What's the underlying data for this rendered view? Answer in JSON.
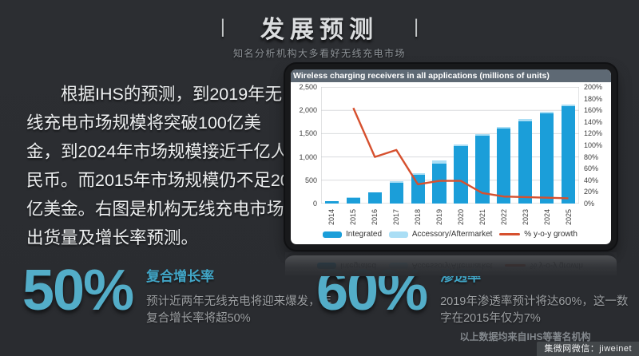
{
  "slide": {
    "background": "#2b2d31",
    "accent_teal": "#53adc8"
  },
  "header": {
    "decor_left": "|",
    "decor_right": "|",
    "title": "发展预测",
    "subtitle": "知名分析机构大多看好无线充电市场"
  },
  "intro": {
    "paragraph": "根据IHS的预测，到2019年无线充电市场规模将突破100亿美金，到2024年市场规模接近千亿人民币。而2015年市场规模仍不足20亿美金。右图是机构无线充电市场出货量及增长率预测。"
  },
  "chart_data": {
    "type": "bar",
    "title": "Wireless charging receivers in all applications (millions of units)",
    "categories": [
      "2014",
      "2015",
      "2016",
      "2017",
      "2018",
      "2019",
      "2020",
      "2021",
      "2022",
      "2023",
      "2024",
      "2025"
    ],
    "series": [
      {
        "name": "Integrated",
        "type": "bar",
        "color": "#1b9ed9",
        "values": [
          48,
          128,
          238,
          452,
          612,
          858,
          1228,
          1455,
          1608,
          1772,
          1932,
          2092
        ]
      },
      {
        "name": "Accessory/Aftermarket",
        "type": "bar",
        "color": "#aadef5",
        "values": [
          4,
          7,
          10,
          28,
          42,
          66,
          48,
          42,
          38,
          42,
          34,
          26
        ]
      },
      {
        "name": "% y-o-y growth",
        "type": "line",
        "color": "#d6502e",
        "axis": "right",
        "values": [
          null,
          164,
          80,
          92,
          33,
          39,
          39,
          18,
          12,
          11,
          10,
          9
        ]
      }
    ],
    "stacked": true,
    "left_axis": {
      "max": 2500,
      "ticks": [
        "0",
        "500",
        "1,000",
        "1,500",
        "2,000",
        "2,500"
      ]
    },
    "right_axis": {
      "max": 200,
      "ticks": [
        "0%",
        "20%",
        "40%",
        "60%",
        "80%",
        "100%",
        "120%",
        "140%",
        "160%",
        "180%",
        "200%"
      ]
    },
    "grid": "horizontal gridlines every 500 units",
    "legend_position": "bottom",
    "plot_background": "#ffffff",
    "header_bar_color": "#5e6974"
  },
  "stats": [
    {
      "value": "50%",
      "label": "复合增长率",
      "desc": "预计近两年无线充电将迎来爆发，年复合增长率将超50%"
    },
    {
      "value": "60%",
      "label": "渗透率",
      "desc": "2019年渗透率预计将达60%，这一数字在2015年仅为7%"
    }
  ],
  "footer": {
    "source_note": "以上数据均来自IHS等著名机构",
    "badge": "集微网微信：jiweinet"
  }
}
